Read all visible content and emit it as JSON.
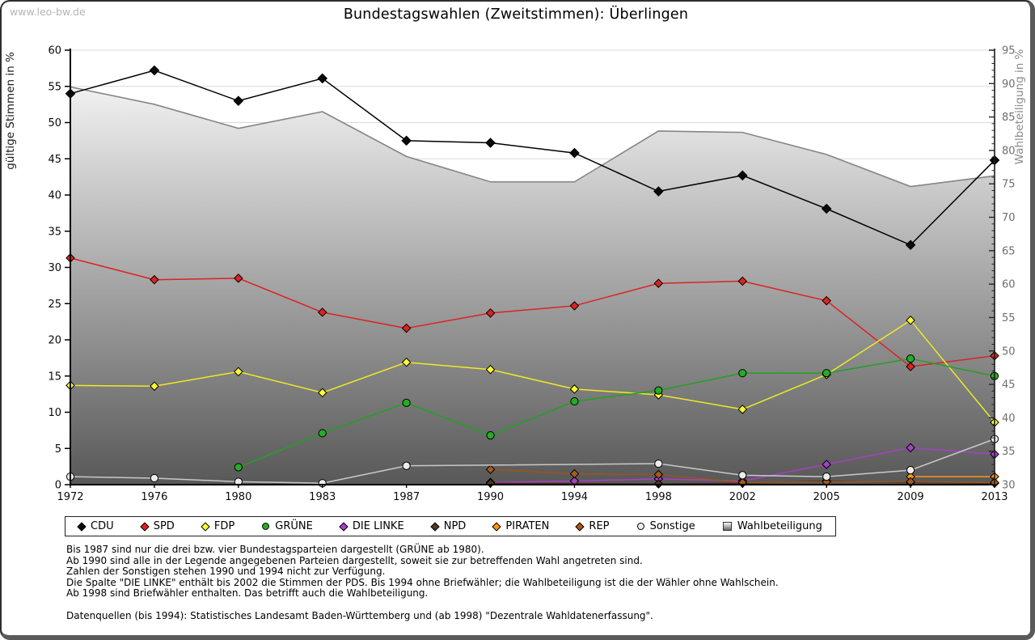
{
  "page": {
    "watermark": "www.leo-bw.de",
    "title": "Bundestagswahlen (Zweitstimmen): Überlingen"
  },
  "chart_data": {
    "type": "line",
    "title": "Bundestagswahlen (Zweitstimmen): Überlingen",
    "x_categories": [
      "1972",
      "1976",
      "1980",
      "1983",
      "1987",
      "1990",
      "1994",
      "1998",
      "2002",
      "2005",
      "2009",
      "2013"
    ],
    "left_axis": {
      "label": "gültige Stimmen in %",
      "min": 0,
      "max": 60,
      "tick_step": 5
    },
    "right_axis": {
      "label": "Wahlbeteiligung in %",
      "min": 30,
      "max": 95,
      "tick_step": 5,
      "minor_step": 1
    },
    "grid": true,
    "legend_position": "bottom",
    "plot_gradient": [
      "#ffffff",
      "#585858"
    ],
    "gridline_color": "#d9d9d9",
    "series": [
      {
        "name": "CDU",
        "axis": "left",
        "color": "#000000",
        "marker": "diamond",
        "marker_fill": "#0a0a0a",
        "values": [
          54.0,
          57.2,
          53.0,
          56.1,
          47.5,
          47.2,
          45.8,
          40.5,
          42.7,
          38.1,
          33.1,
          44.8
        ]
      },
      {
        "name": "SPD",
        "axis": "left",
        "color": "#dd2222",
        "marker": "diamond",
        "marker_fill": "#dd2222",
        "values": [
          31.3,
          28.3,
          28.5,
          23.8,
          21.6,
          23.7,
          24.7,
          27.8,
          28.1,
          25.4,
          16.3,
          17.8
        ]
      },
      {
        "name": "FDP",
        "axis": "left",
        "color": "#eeea22",
        "marker": "diamond",
        "marker_fill": "#fbf838",
        "values": [
          13.7,
          13.6,
          15.6,
          12.7,
          16.9,
          15.9,
          13.2,
          12.4,
          10.4,
          15.2,
          22.7,
          8.6
        ]
      },
      {
        "name": "GRÜNE",
        "axis": "left",
        "color": "#22a022",
        "marker": "circle",
        "marker_fill": "#27ab27",
        "values": [
          null,
          null,
          2.4,
          7.1,
          11.3,
          6.8,
          11.5,
          13.0,
          15.4,
          15.4,
          17.4,
          15.0
        ]
      },
      {
        "name": "DIE LINKE",
        "axis": "left",
        "color": "#a640c8",
        "marker": "diamond",
        "marker_fill": "#a640c8",
        "values": [
          null,
          null,
          null,
          null,
          null,
          0.3,
          0.5,
          0.8,
          0.5,
          2.8,
          5.1,
          4.2
        ]
      },
      {
        "name": "NPD",
        "axis": "left",
        "color": "#503020",
        "marker": "diamond",
        "marker_fill": "#553524",
        "values": [
          null,
          null,
          null,
          null,
          null,
          0.2,
          null,
          0.1,
          0.2,
          0.5,
          0.3,
          0.2
        ]
      },
      {
        "name": "PIRATEN",
        "axis": "left",
        "color": "#ff9518",
        "marker": "diamond",
        "marker_fill": "#ff9518",
        "values": [
          null,
          null,
          null,
          null,
          null,
          null,
          null,
          null,
          null,
          null,
          1.1,
          1.1
        ]
      },
      {
        "name": "REP",
        "axis": "left",
        "color": "#9b551c",
        "marker": "diamond",
        "marker_fill": "#a35a1e",
        "values": [
          null,
          null,
          null,
          null,
          null,
          2.1,
          1.5,
          1.4,
          0.3,
          0.4,
          0.4,
          0.3
        ]
      },
      {
        "name": "Sonstige",
        "axis": "left",
        "color": "#c9c9c9",
        "marker": "circle",
        "marker_fill": "#ececec",
        "values": [
          1.1,
          0.9,
          0.4,
          0.2,
          2.6,
          null,
          null,
          2.9,
          1.3,
          1.1,
          2.0,
          6.3
        ]
      },
      {
        "name": "Wahlbeteiligung",
        "axis": "right",
        "color": "#858585",
        "marker": "gradient-square",
        "style": "area",
        "values": [
          89.5,
          86.9,
          83.3,
          85.8,
          79.1,
          75.3,
          75.3,
          82.9,
          82.7,
          79.4,
          74.6,
          76.2
        ]
      }
    ]
  },
  "footnotes": {
    "lines": [
      "Bis 1987 sind nur die drei bzw. vier Bundestagsparteien dargestellt (GRÜNE ab 1980).",
      "Ab 1990 sind alle in der Legende angegebenen Parteien dargestellt, soweit sie zur betreffenden Wahl angetreten sind.",
      "Zahlen der Sonstigen stehen 1990 und 1994 nicht zur Verfügung.",
      "Die Spalte \"DIE LINKE\" enthält bis 2002 die Stimmen der PDS. Bis 1994 ohne Briefwähler; die Wahlbeteiligung ist die der Wähler ohne Wahlschein.",
      "Ab 1998 sind Briefwähler enthalten. Das betrifft auch die Wahlbeteiligung."
    ],
    "source": "Datenquellen (bis 1994): Statistisches Landesamt Baden-Württemberg und (ab 1998) \"Dezentrale Wahldatenerfassung\"."
  }
}
